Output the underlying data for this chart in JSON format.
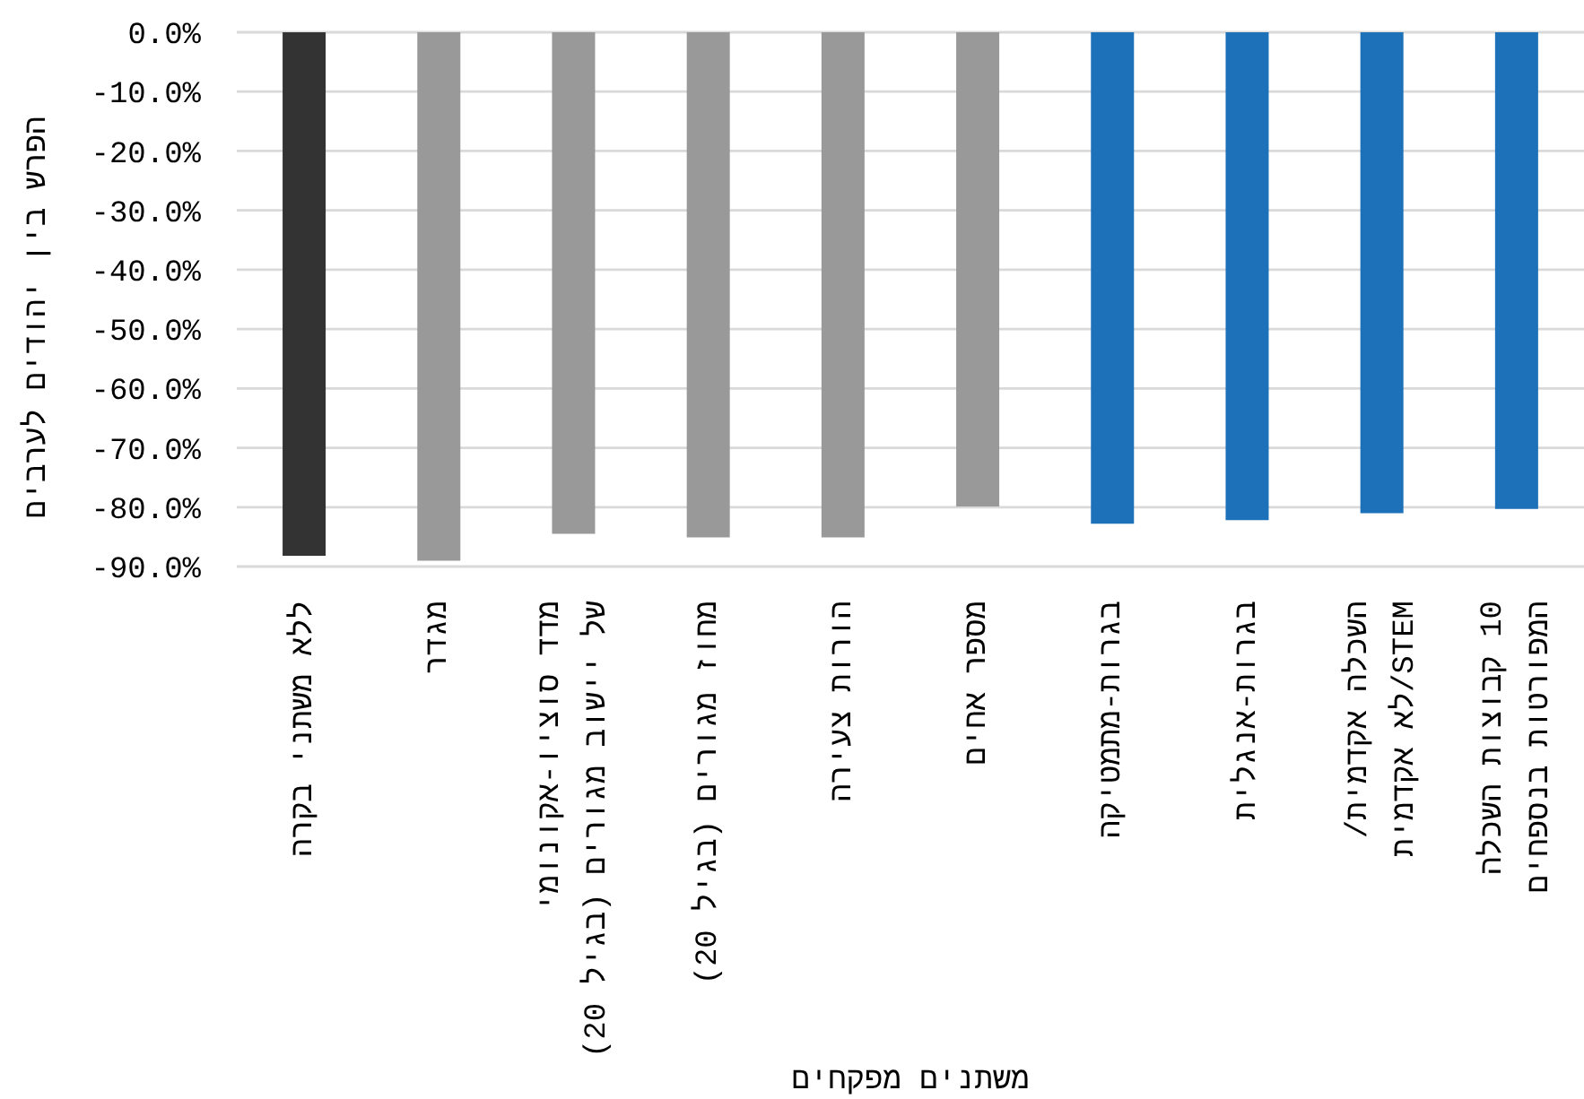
{
  "chart_data": {
    "type": "bar",
    "xlabel": "משתנים מפקחים",
    "ylabel": "הפרש בין יהודים לערבים",
    "categories": [
      "ללא משתני בקרה",
      "מגדר",
      "מדד סוציו-אקונומי\nשל יישוב מגורים (בגיל 20)",
      "מחוז מגורים (בגיל 20)",
      "הורות צעירה",
      "מספר אחים",
      "בגרות-מתמטיקה",
      "בגרות-אנגלית",
      "השכלה אקדמית/\nSTEM/לא אקדמית",
      "10 קבוצות השכלה\nהמפורטות בנספחים"
    ],
    "values": [
      -88.2,
      -89.0,
      -84.5,
      -85.1,
      -85.1,
      -79.9,
      -82.8,
      -82.2,
      -81.0,
      -80.3
    ],
    "colors": [
      "#333333",
      "#999999",
      "#999999",
      "#999999",
      "#999999",
      "#999999",
      "#1c71b8",
      "#1c71b8",
      "#1c71b8",
      "#1c71b8"
    ],
    "ylim": [
      -90,
      0
    ],
    "yticks": [
      {
        "value": -90,
        "label": "-90.0%"
      },
      {
        "value": -80,
        "label": "-80.0%"
      },
      {
        "value": -70,
        "label": "-70.0%"
      },
      {
        "value": -60,
        "label": "-60.0%"
      },
      {
        "value": -50,
        "label": "-50.0%"
      },
      {
        "value": -40,
        "label": "-40.0%"
      },
      {
        "value": -30,
        "label": "-30.0%"
      },
      {
        "value": -20,
        "label": "-20.0%"
      },
      {
        "value": -10,
        "label": "-10.0%"
      },
      {
        "value": 0,
        "label": "0.0%"
      }
    ],
    "grid": "y"
  }
}
